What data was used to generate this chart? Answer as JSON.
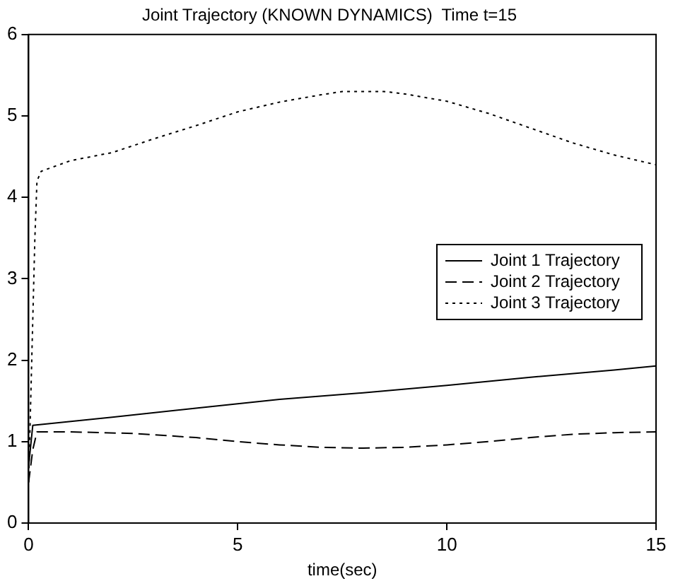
{
  "chart_data": {
    "type": "line",
    "title": "Joint Trajectory (KNOWN DYNAMICS)  Time t=15",
    "xlabel": "time(sec)",
    "xlim": [
      0,
      15
    ],
    "xticks": [
      0,
      5,
      10,
      15
    ],
    "ylim": [
      0,
      6
    ],
    "yticks": [
      0,
      1,
      2,
      3,
      4,
      5,
      6
    ],
    "grid": false,
    "legend": "right",
    "marker": "none",
    "series": [
      {
        "name": "Joint 1 Trajectory",
        "color": "#000000",
        "line_style": "solid",
        "x": [
          0,
          0.1,
          2,
          4,
          6,
          8,
          10,
          12,
          14,
          15
        ],
        "values": [
          0.7,
          1.2,
          1.3,
          1.41,
          1.52,
          1.6,
          1.69,
          1.79,
          1.88,
          1.93
        ]
      },
      {
        "name": "Joint 2 Trajectory",
        "color": "#000000",
        "line_style": "dashed",
        "x": [
          0,
          0.1,
          0.2,
          1,
          2.5,
          4,
          5,
          6,
          7,
          8,
          9,
          10,
          11,
          12,
          13,
          14,
          15
        ],
        "values": [
          0.5,
          0.9,
          1.12,
          1.12,
          1.1,
          1.05,
          1.0,
          0.96,
          0.93,
          0.92,
          0.93,
          0.96,
          1.0,
          1.05,
          1.09,
          1.11,
          1.12
        ]
      },
      {
        "name": "Joint 3 Trajectory",
        "color": "#000000",
        "line_style": "dotted",
        "x": [
          0,
          0.05,
          0.1,
          0.15,
          0.2,
          0.3,
          1,
          2,
          3,
          4,
          5,
          6,
          7,
          7.5,
          8.5,
          9,
          10,
          11,
          12,
          13,
          14,
          15
        ],
        "values": [
          0.5,
          1.5,
          2.5,
          3.5,
          4.2,
          4.32,
          4.45,
          4.55,
          4.72,
          4.88,
          5.05,
          5.17,
          5.26,
          5.3,
          5.3,
          5.27,
          5.18,
          5.03,
          4.85,
          4.67,
          4.52,
          4.4
        ]
      }
    ]
  }
}
